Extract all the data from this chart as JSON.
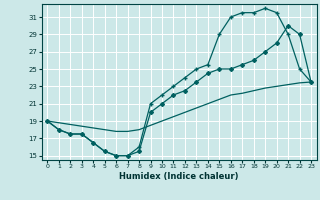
{
  "xlabel": "Humidex (Indice chaleur)",
  "bg_color": "#cce8e8",
  "grid_color": "#ffffff",
  "line_color": "#006060",
  "xlim": [
    -0.5,
    23.5
  ],
  "ylim": [
    14.5,
    32.5
  ],
  "xticks": [
    0,
    1,
    2,
    3,
    4,
    5,
    6,
    7,
    8,
    9,
    10,
    11,
    12,
    13,
    14,
    15,
    16,
    17,
    18,
    19,
    20,
    21,
    22,
    23
  ],
  "yticks": [
    15,
    17,
    19,
    21,
    23,
    25,
    27,
    29,
    31
  ],
  "line1_x": [
    0,
    1,
    2,
    3,
    4,
    5,
    6,
    7,
    8,
    9,
    10,
    11,
    12,
    13,
    14,
    15,
    16,
    17,
    18,
    19,
    20,
    21,
    22,
    23
  ],
  "line1_y": [
    19,
    18,
    17.5,
    17.5,
    16.5,
    15.5,
    15,
    15,
    15.5,
    20,
    21,
    22,
    22.5,
    23.5,
    24.5,
    25,
    25,
    25.5,
    26,
    27,
    28,
    30,
    29,
    23.5
  ],
  "line2_x": [
    0,
    1,
    2,
    3,
    4,
    5,
    6,
    7,
    8,
    9,
    10,
    11,
    12,
    13,
    14,
    15,
    16,
    17,
    18,
    19,
    20,
    21,
    22,
    23
  ],
  "line2_y": [
    19,
    18,
    17.5,
    17.5,
    16.5,
    15.5,
    15,
    15,
    16,
    21,
    22,
    23,
    24,
    25,
    25.5,
    29,
    31,
    31.5,
    31.5,
    32,
    31.5,
    29,
    25,
    23.5
  ],
  "line3_x": [
    0,
    1,
    2,
    3,
    4,
    5,
    6,
    7,
    8,
    9,
    10,
    11,
    12,
    13,
    14,
    15,
    16,
    17,
    18,
    19,
    20,
    21,
    22,
    23
  ],
  "line3_y": [
    19,
    18.8,
    18.6,
    18.4,
    18.2,
    18.0,
    17.8,
    17.8,
    18.0,
    18.5,
    19.0,
    19.5,
    20.0,
    20.5,
    21.0,
    21.5,
    22.0,
    22.2,
    22.5,
    22.8,
    23.0,
    23.2,
    23.4,
    23.5
  ]
}
